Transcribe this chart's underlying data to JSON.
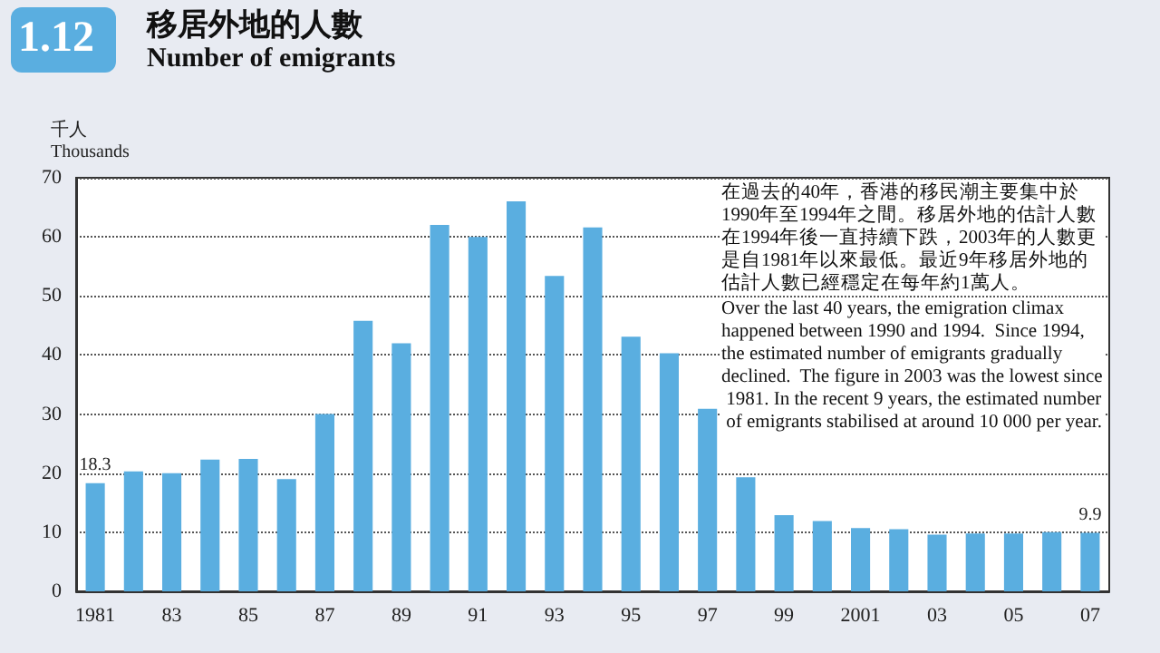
{
  "chart_data": {
    "type": "bar",
    "title": "移居外地的人數",
    "subtitle": "Number of emigrants",
    "ylabel": "千人\nThousands",
    "annotations": [
      "1.12",
      "在過去的40年，香港的移民潮主要集中於1990年至1994年之間。移居外地的估計人數在1994年後一直持續下跌，2003年的人數更是自1981年以來最低。最近9年移居外地的估計人數已經穩定在每年約1萬人。",
      "Over the last 40 years, the emigration climax happened between 1990 and 1994.  Since 1994, the estimated number of emigrants gradually declined.  The figure in 2003 was the lowest since 1981. In the recent 9 years, the estimated number of emigrants stabilised at around 10 000 per year."
    ],
    "categories": [
      "1981",
      null,
      "83",
      null,
      "85",
      null,
      "87",
      null,
      "89",
      null,
      "91",
      null,
      "93",
      null,
      "95",
      null,
      "97",
      null,
      "99",
      null,
      "2001",
      null,
      "03",
      null,
      "05",
      null,
      "07"
    ],
    "values": [
      18.3,
      20.3,
      20.0,
      22.3,
      22.4,
      19.0,
      30.0,
      45.8,
      42.0,
      62.0,
      60.0,
      66.0,
      53.4,
      61.6,
      43.1,
      40.3,
      30.9,
      19.3,
      12.9,
      11.9,
      10.7,
      10.5,
      9.6,
      9.8,
      9.8,
      10.0,
      9.9
    ],
    "value_labels": [
      "18.3",
      null,
      null,
      null,
      null,
      null,
      null,
      null,
      null,
      null,
      null,
      null,
      null,
      null,
      null,
      null,
      null,
      null,
      null,
      null,
      null,
      null,
      null,
      null,
      null,
      null,
      "9.9"
    ],
    "color": "#5aaee0",
    "ylim": [
      0,
      70
    ],
    "yticks": [
      0,
      10,
      20,
      30,
      40,
      50,
      60,
      70
    ],
    "grid": "y"
  }
}
